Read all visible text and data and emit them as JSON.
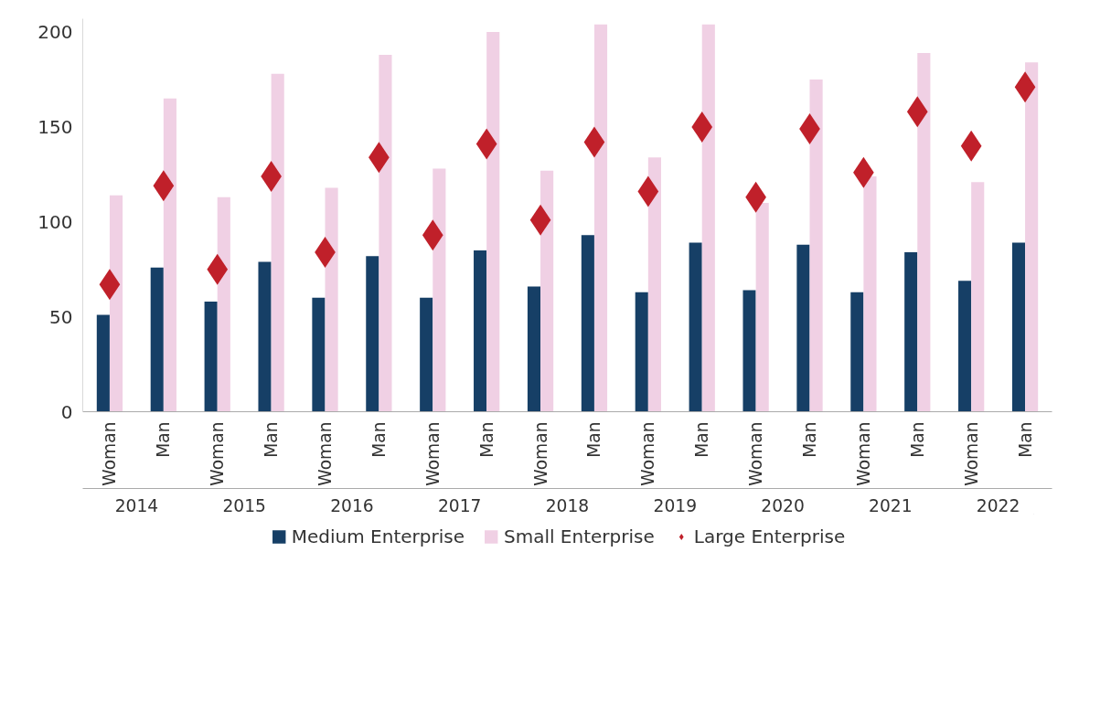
{
  "chart_data": {
    "type": "bar",
    "categories": [
      "Woman",
      "Man",
      "Woman",
      "Man",
      "Woman",
      "Man",
      "Woman",
      "Man",
      "Woman",
      "Man",
      "Woman",
      "Man",
      "Woman",
      "Man",
      "Woman",
      "Man",
      "Woman",
      "Man"
    ],
    "series": [
      {
        "name": "Medium Enterprise",
        "color": "#163f66",
        "values": [
          51,
          76,
          58,
          79,
          60,
          82,
          60,
          85,
          66,
          93,
          63,
          89,
          64,
          88,
          63,
          84,
          69,
          89
        ]
      },
      {
        "name": "Small Enterprise",
        "color": "#f0d0e4",
        "values": [
          114,
          165,
          113,
          178,
          118,
          188,
          128,
          200,
          127,
          204,
          134,
          204,
          110,
          175,
          124,
          189,
          121,
          184
        ]
      },
      {
        "name": "Large Enterprise",
        "type": "scatter",
        "marker": "diamond",
        "color": "#c0202a",
        "values": [
          67,
          119,
          75,
          124,
          84,
          134,
          93,
          141,
          101,
          142,
          116,
          150,
          113,
          149,
          126,
          158,
          140,
          171
        ]
      }
    ],
    "annotations": [
      "2014",
      "2015",
      "2016",
      "2017",
      "2018",
      "2019",
      "2020",
      "2021",
      "2022"
    ],
    "ylim": [
      0,
      207
    ],
    "yticks": [
      0,
      50,
      100,
      150,
      200
    ],
    "grid": false,
    "legend": "bottom"
  }
}
